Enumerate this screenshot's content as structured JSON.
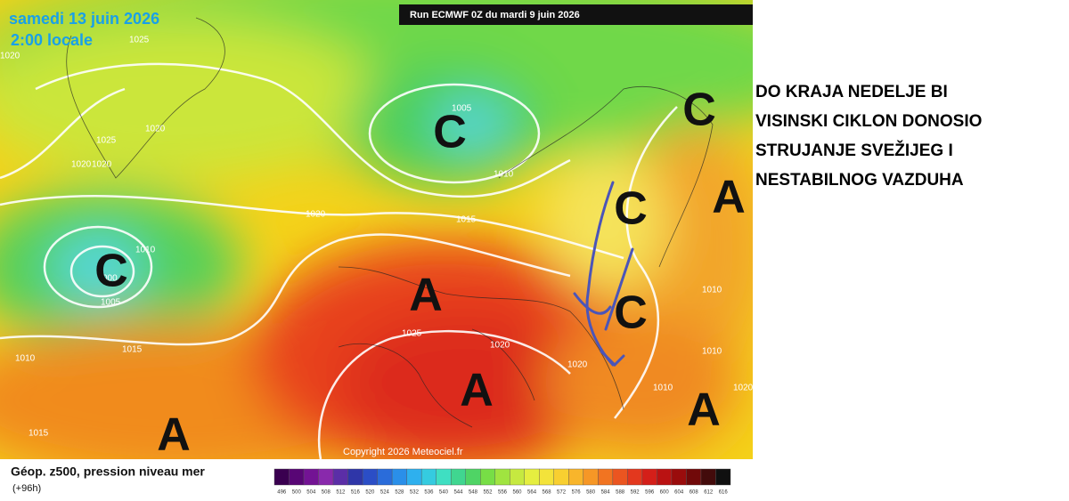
{
  "header": {
    "date": "samedi 13 juin 2026",
    "time": "2:00 locale",
    "run": "Run ECMWF 0Z du mardi 9 juin 2026"
  },
  "isobar_labels": [
    "1025",
    "1020",
    "1025",
    "1020",
    "1020",
    "1020",
    "1005",
    "1010",
    "1020",
    "1015",
    "1010",
    "000",
    "1005",
    "1015",
    "1010",
    "1025",
    "1020",
    "1020",
    "1010",
    "1010",
    "1010",
    "1020",
    "1015"
  ],
  "systems": [
    "C",
    "C",
    "A",
    "C",
    "C",
    "A",
    "C",
    "A",
    "A",
    "A"
  ],
  "comment": [
    "DO KRAJA NEDELJE BI",
    "VISINSKI CIKLON DONOSIO",
    "STRUJANJE SVEŽIJEG I",
    "NESTABILNOG VAZDUHA"
  ],
  "copyright": "Copyright 2026 Meteociel.fr",
  "legend": {
    "title": "Géop. z500, pression niveau mer",
    "subtitle": "(+96h)",
    "scale": [
      496,
      500,
      504,
      508,
      512,
      516,
      520,
      524,
      528,
      532,
      536,
      540,
      544,
      548,
      552,
      556,
      560,
      564,
      568,
      572,
      576,
      580,
      584,
      588,
      592,
      596,
      600,
      604,
      608,
      612,
      616
    ]
  }
}
